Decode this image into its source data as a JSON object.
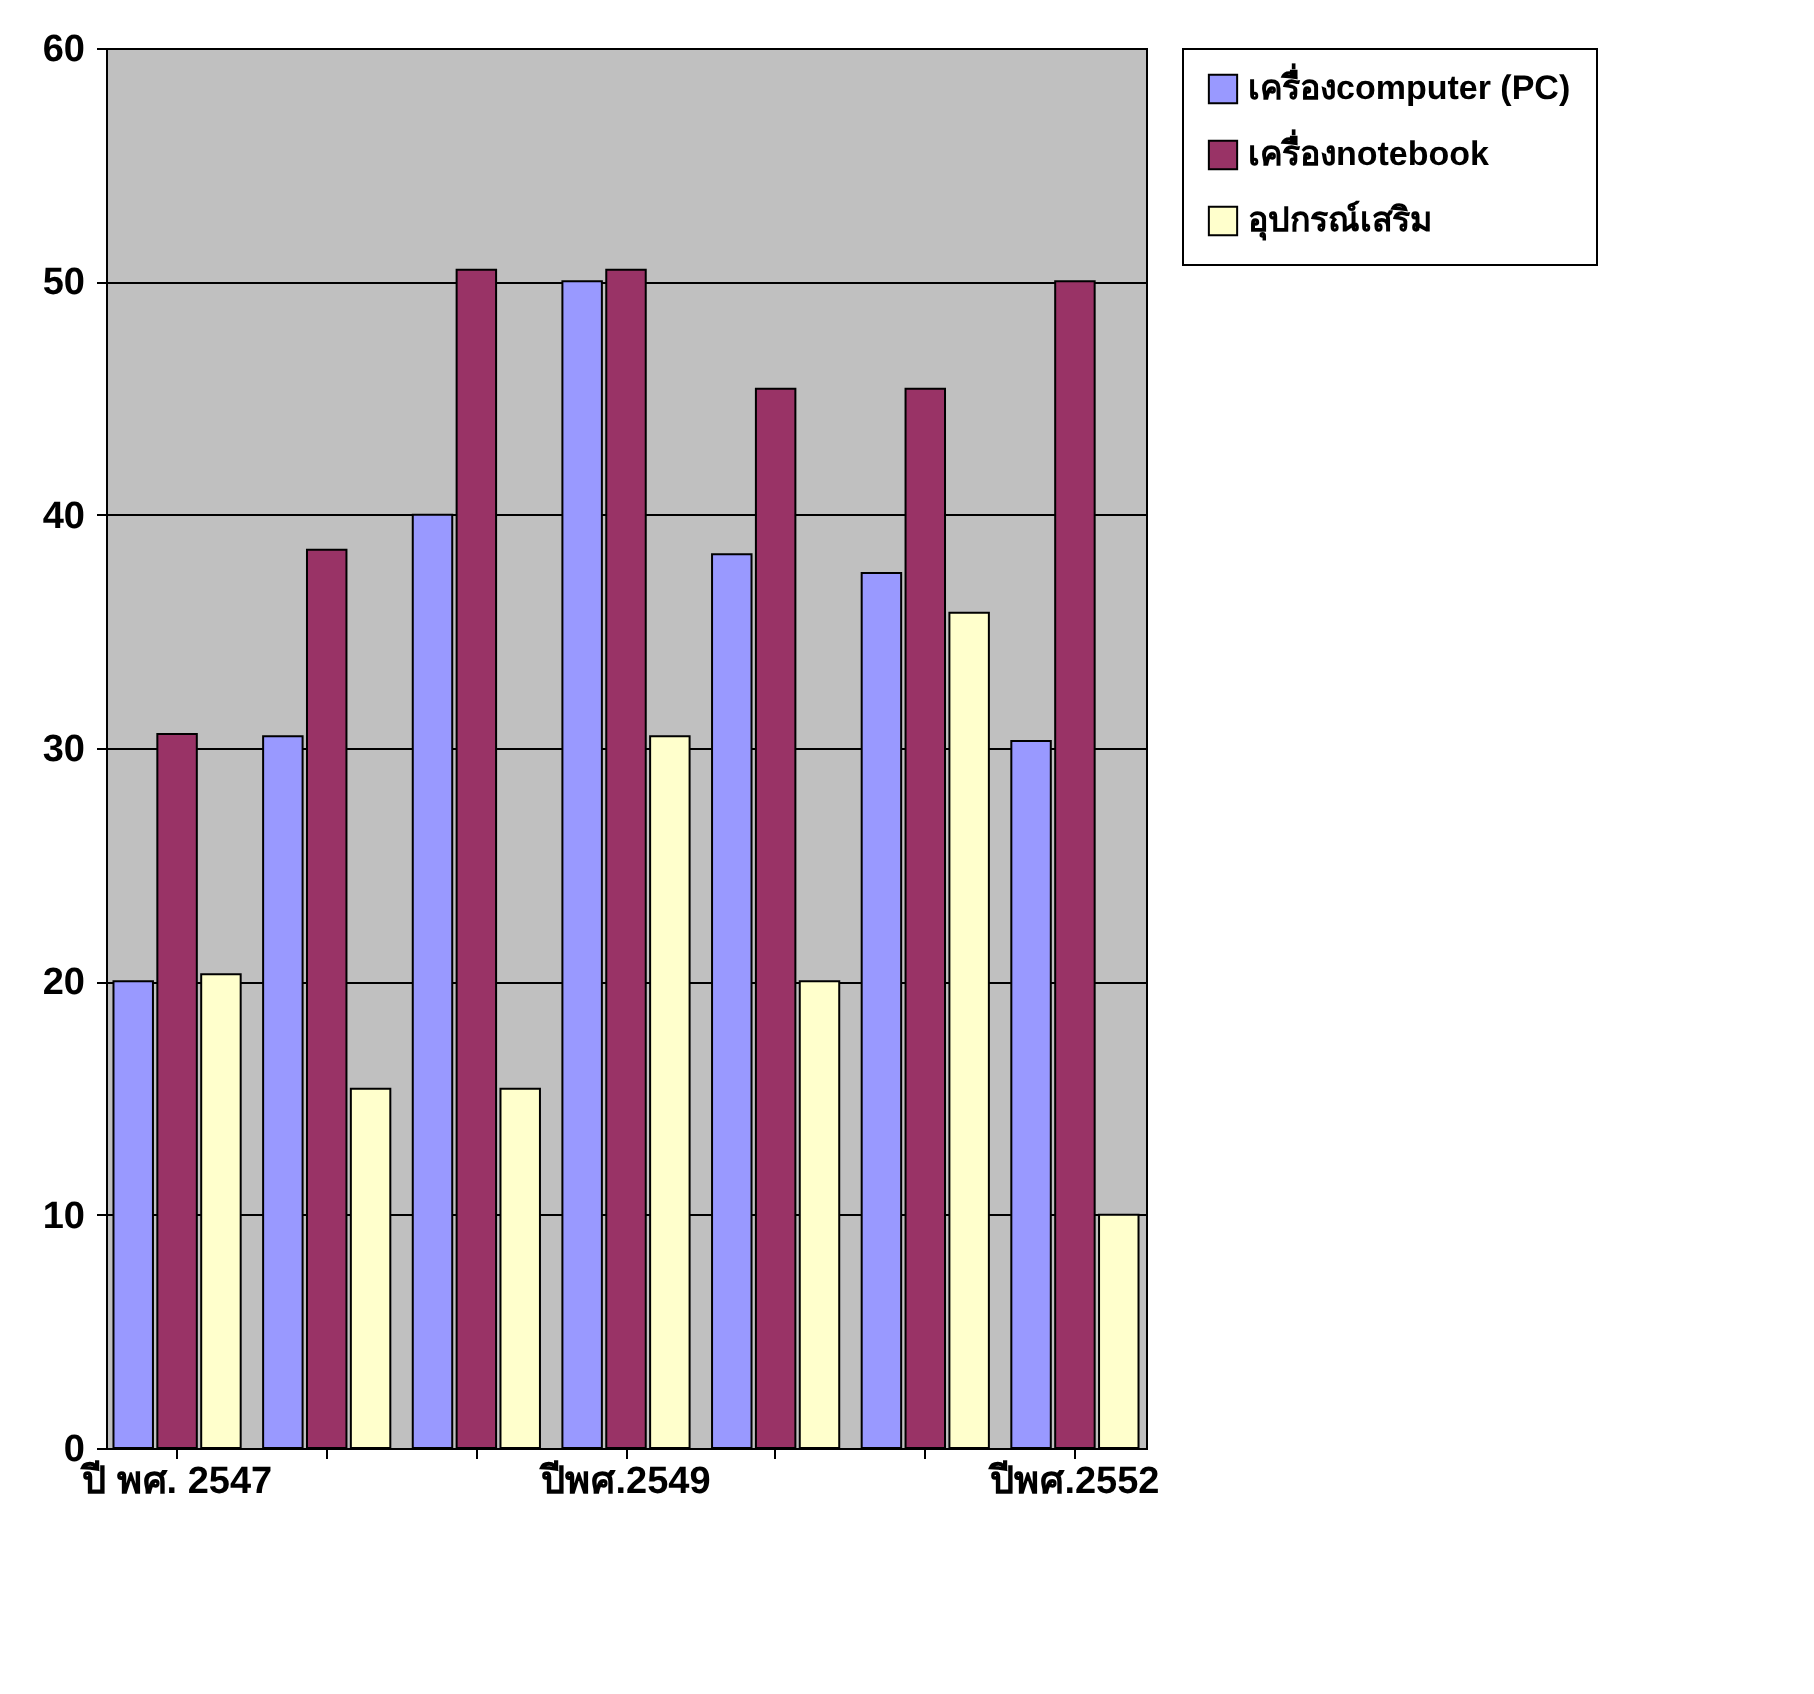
{
  "chart_data": {
    "type": "bar",
    "categories": [
      "ปี พศ. 2547",
      null,
      null,
      "ปีพศ.2549",
      null,
      null,
      "ปีพศ.2552"
    ],
    "series": [
      {
        "name": "เครื่องcomputer (PC)",
        "color": "#9999ff",
        "values": [
          20,
          30.5,
          40,
          50,
          38.3,
          37.5,
          30.3
        ]
      },
      {
        "name": "เครื่องnotebook",
        "color": "#993366",
        "values": [
          30.6,
          38.5,
          50.5,
          50.5,
          45.4,
          45.4,
          50
        ]
      },
      {
        "name": "อุปกรณ์เสริม",
        "color": "#ffffcc",
        "values": [
          20.3,
          15.4,
          15.4,
          30.5,
          20,
          35.8,
          10
        ]
      }
    ],
    "ylim": [
      0,
      60
    ],
    "yticks": [
      0,
      10,
      20,
      30,
      40,
      50,
      60
    ],
    "grid": "y",
    "legend": "right"
  }
}
